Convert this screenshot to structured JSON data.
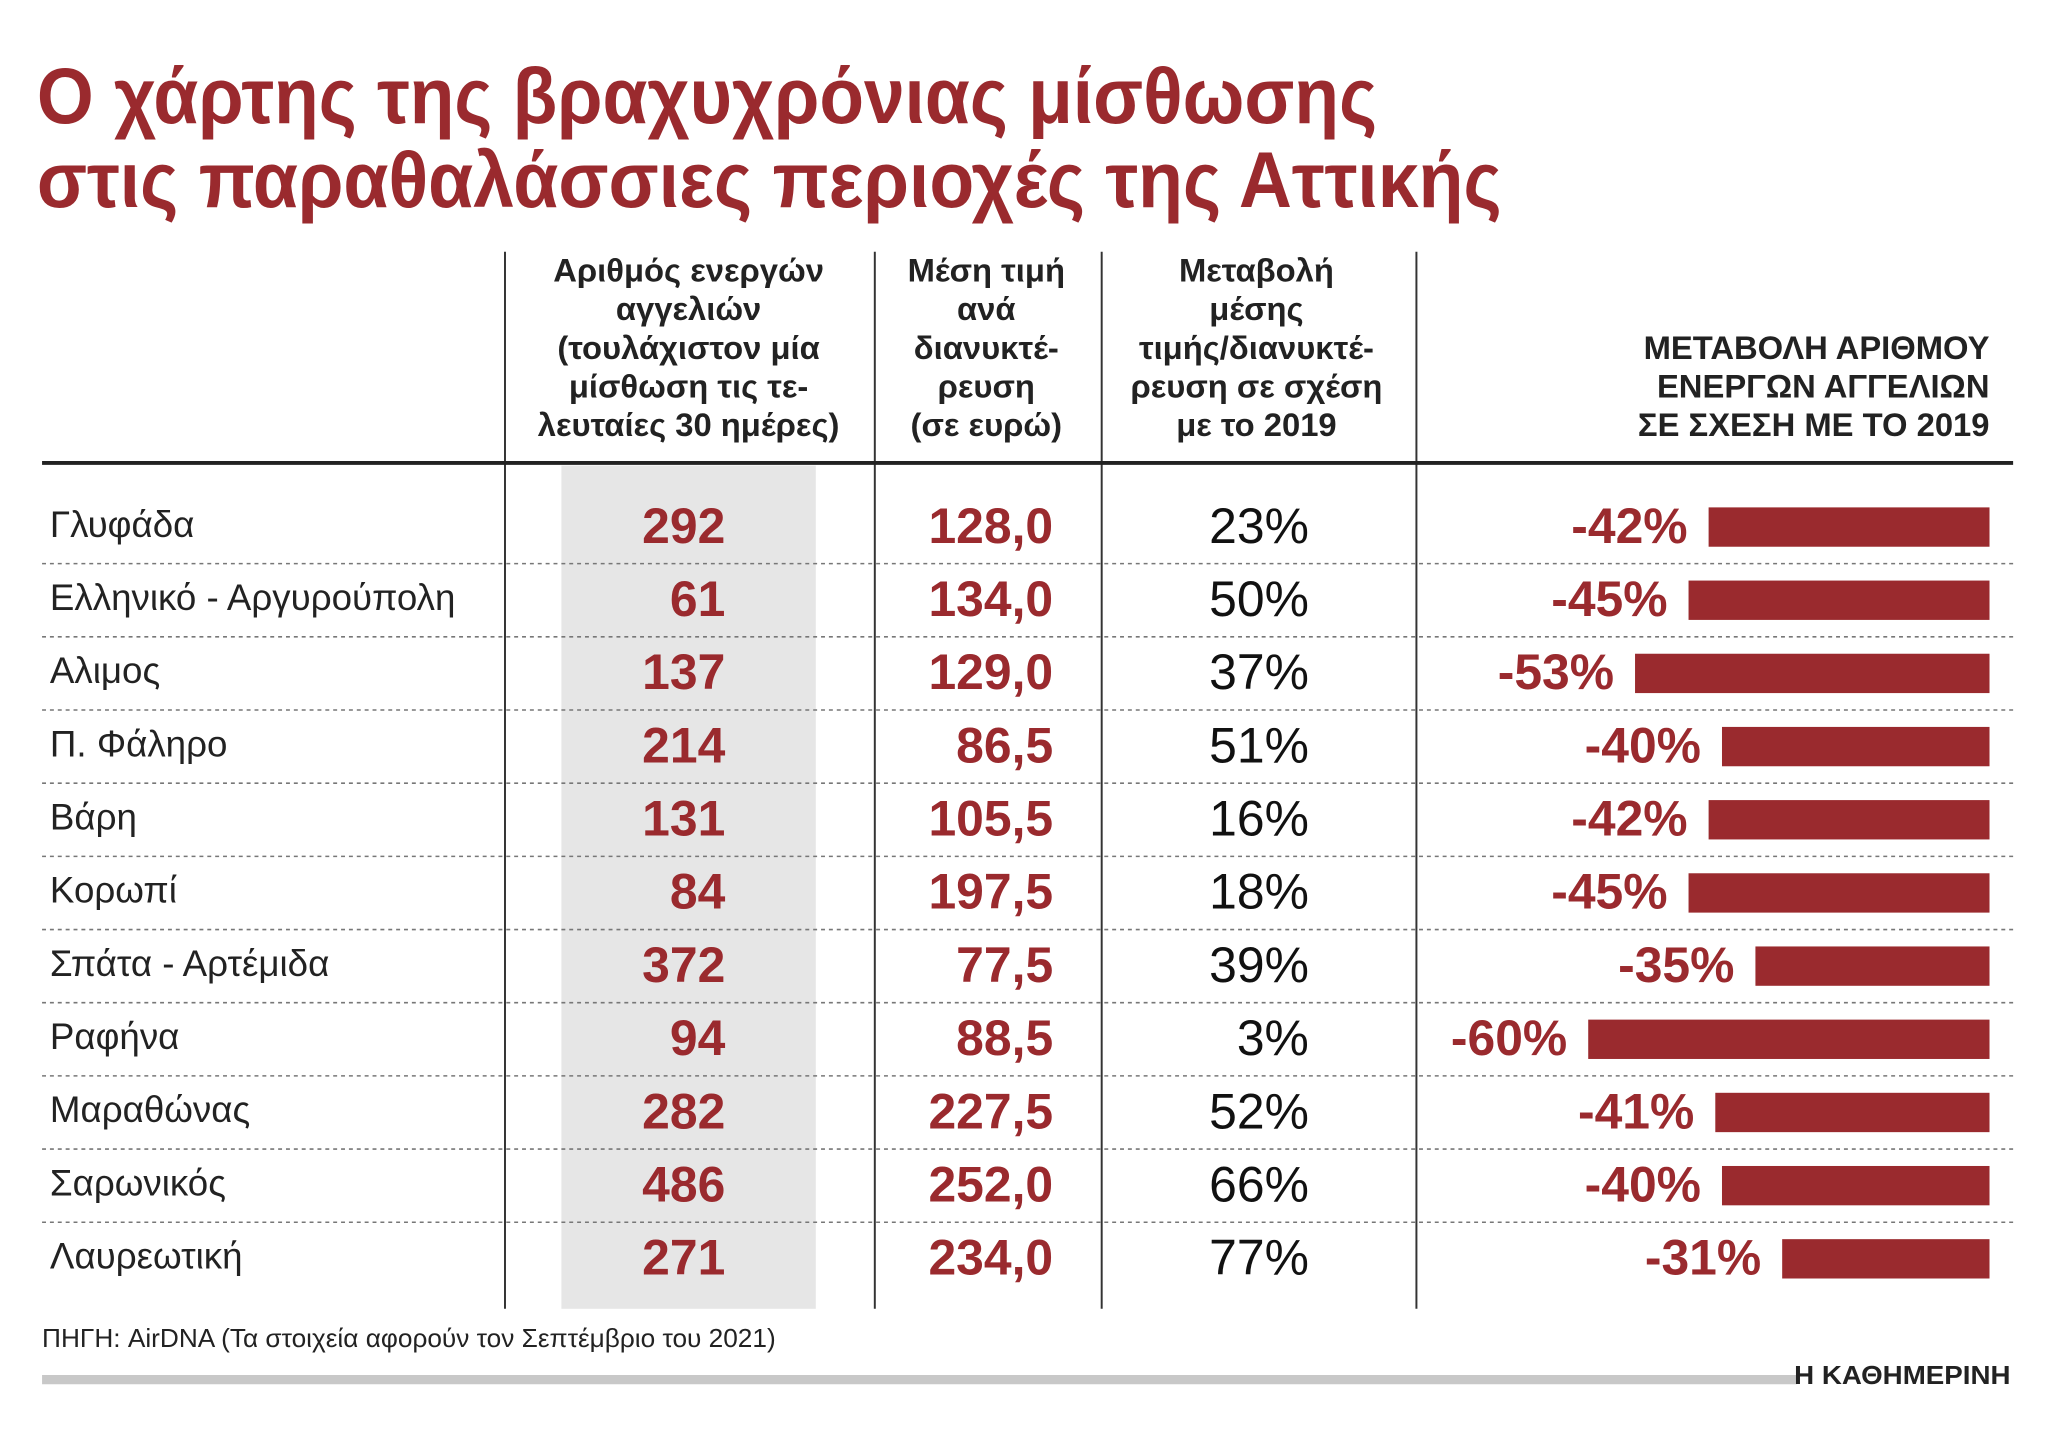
{
  "title": [
    "Ο χάρτης της βραχυχρόνιας μίσθωσης",
    "στις παραθαλάσσιες περιοχές της Αττικής"
  ],
  "table": {
    "headers": [
      [
        "Αριθμός ενεργών",
        "αγγελιών",
        "(τουλάχιστον μία",
        "μίσθωση τις τε-",
        "λευταίες 30 ημέρες)"
      ],
      [
        "Μέση τιμή",
        "ανά",
        "διανυκτέ-",
        "ρευση",
        "(σε ευρώ)"
      ],
      [
        "Μεταβολή",
        "μέσης",
        "τιμής/διανυκτέ-",
        "ρευση σε σχέση",
        "με το 2019"
      ],
      [
        "ΜΕΤΑΒΟΛΗ ΑΡΙΘΜΟΥ",
        "ΕΝΕΡΓΩΝ ΑΓΓΕΛΙΩΝ",
        "ΣΕ ΣΧΕΣΗ ΜΕ ΤΟ 2019"
      ]
    ],
    "rows": [
      {
        "area": "Γλυφάδα",
        "listings": 292,
        "price": "128,0",
        "price_change": "23%",
        "listing_change": {
          "value": -42,
          "label": "-42%"
        }
      },
      {
        "area": "Ελληνικό - Αργυρούπολη",
        "listings": 61,
        "price": "134,0",
        "price_change": "50%",
        "listing_change": {
          "value": -45,
          "label": "-45%"
        }
      },
      {
        "area": "Αλιμος",
        "listings": 137,
        "price": "129,0",
        "price_change": "37%",
        "listing_change": {
          "value": -53,
          "label": "-53%"
        }
      },
      {
        "area": "Π. Φάληρο",
        "listings": 214,
        "price": "86,5",
        "price_change": "51%",
        "listing_change": {
          "value": -40,
          "label": "-40%"
        }
      },
      {
        "area": "Βάρη",
        "listings": 131,
        "price": "105,5",
        "price_change": "16%",
        "listing_change": {
          "value": -42,
          "label": "-42%"
        }
      },
      {
        "area": "Κορωπί",
        "listings": 84,
        "price": "197,5",
        "price_change": "18%",
        "listing_change": {
          "value": -45,
          "label": "-45%"
        }
      },
      {
        "area": "Σπάτα - Αρτέμιδα",
        "listings": 372,
        "price": "77,5",
        "price_change": "39%",
        "listing_change": {
          "value": -35,
          "label": "-35%"
        }
      },
      {
        "area": "Ραφήνα",
        "listings": 94,
        "price": "88,5",
        "price_change": "3%",
        "listing_change": {
          "value": -60,
          "label": "-60%"
        }
      },
      {
        "area": "Μαραθώνας",
        "listings": 282,
        "price": "227,5",
        "price_change": "52%",
        "listing_change": {
          "value": -41,
          "label": "-41%"
        }
      },
      {
        "area": "Σαρωνικός",
        "listings": 486,
        "price": "252,0",
        "price_change": "66%",
        "listing_change": {
          "value": -40,
          "label": "-40%"
        }
      },
      {
        "area": "Λαυρεωτική",
        "listings": 271,
        "price": "234,0",
        "price_change": "77%",
        "listing_change": {
          "value": -31,
          "label": "-31%"
        }
      }
    ]
  },
  "source": "ΠΗΓΗ: AirDNA (Τα στοιχεία αφορούν τον Σεπτέμβριο του 2021)",
  "brand": "Η ΚΑΘΗΜΕΡΙΝΗ"
}
